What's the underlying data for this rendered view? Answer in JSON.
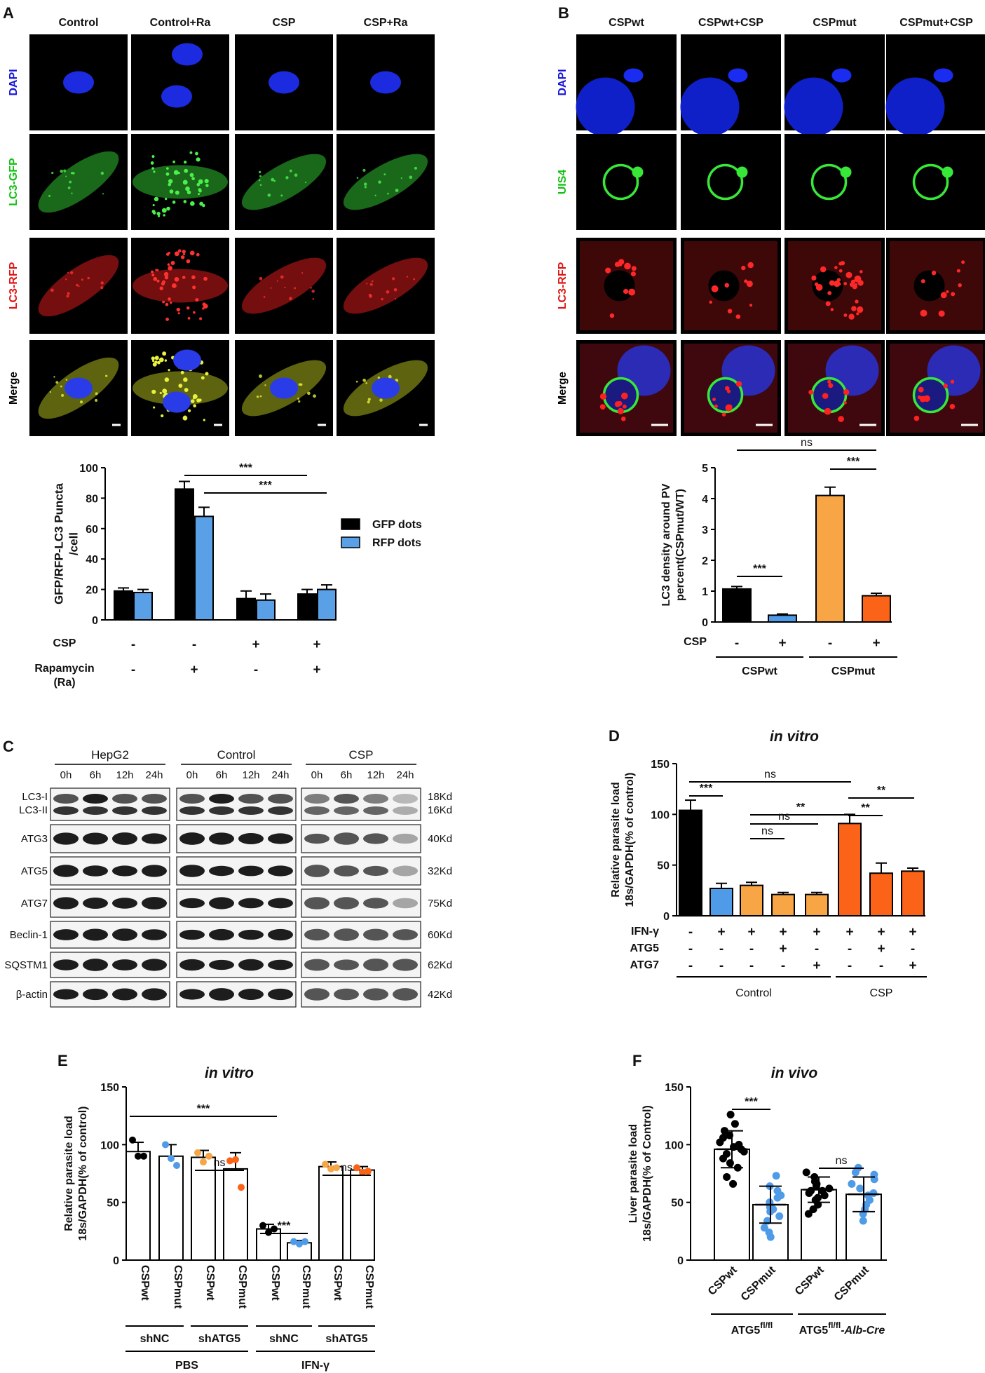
{
  "panels": {
    "A": {
      "letter": "A",
      "columns": [
        "Control",
        "Control+Ra",
        "CSP",
        "CSP+Ra"
      ],
      "rows": [
        {
          "label": "DAPI",
          "color": "#1515d8"
        },
        {
          "label": "LC3-GFP",
          "color": "#12c012"
        },
        {
          "label": "LC3-RFP",
          "color": "#e01515"
        },
        {
          "label": "Merge",
          "color": "#000000"
        }
      ]
    },
    "B": {
      "letter": "B",
      "columns": [
        "CSPwt",
        "CSPwt+CSP",
        "CSPmut",
        "CSPmut+CSP"
      ],
      "rows": [
        {
          "label": "DAPI",
          "color": "#1515d8"
        },
        {
          "label": "UIS4",
          "color": "#12c012"
        },
        {
          "label": "LC3-RFP",
          "color": "#e01515"
        },
        {
          "label": "Merge",
          "color": "#000000"
        }
      ]
    },
    "C": {
      "letter": "C",
      "groups": [
        "HepG2",
        "Control",
        "CSP"
      ],
      "timepoints": [
        "0h",
        "6h",
        "12h",
        "24h"
      ],
      "bands": [
        {
          "name": "LC3-I",
          "name2": "LC3-II",
          "size": "18Kd",
          "size2": "16Kd"
        },
        {
          "name": "ATG3",
          "size": "40Kd"
        },
        {
          "name": "ATG5",
          "size": "32Kd"
        },
        {
          "name": "ATG7",
          "size": "75Kd"
        },
        {
          "name": "Beclin-1",
          "size": "60Kd"
        },
        {
          "name": "SQSTM1",
          "size": "62Kd"
        },
        {
          "name": "β-actin",
          "size": "42Kd"
        }
      ]
    },
    "D": {
      "letter": "D"
    },
    "E": {
      "letter": "E"
    },
    "F": {
      "letter": "F"
    }
  },
  "chart_data": [
    {
      "panel": "A",
      "type": "bar",
      "ylabel": "GFP/RFP-LC3 Puncta\n/cell",
      "ylim": [
        0,
        100
      ],
      "yticks": [
        0,
        20,
        40,
        60,
        80,
        100
      ],
      "series": [
        {
          "name": "GFP dots",
          "color": "#000000",
          "values": [
            19,
            86,
            14,
            17
          ],
          "errors": [
            2,
            5,
            5,
            3
          ]
        },
        {
          "name": "RFP dots",
          "color": "#5aa0e6",
          "values": [
            18,
            68,
            13,
            20
          ],
          "errors": [
            2,
            6,
            4,
            3
          ]
        }
      ],
      "legend": "right",
      "factor_rows": [
        {
          "label": "CSP",
          "values": [
            "-",
            "-",
            "+",
            "+"
          ]
        },
        {
          "label": "Rapamycin\n(Ra)",
          "values": [
            "-",
            "+",
            "-",
            "+"
          ]
        }
      ],
      "significance": [
        {
          "from": [
            1,
            0
          ],
          "to": [
            3,
            0
          ],
          "label": "***"
        },
        {
          "from": [
            1,
            1
          ],
          "to": [
            3,
            1
          ],
          "label": "***"
        }
      ]
    },
    {
      "panel": "B",
      "type": "bar",
      "ylabel": "LC3 density around PV\npercent(CSPmut/WT)",
      "ylim": [
        0,
        5
      ],
      "yticks": [
        0,
        1,
        2,
        3,
        4,
        5
      ],
      "values": [
        1.07,
        0.22,
        4.1,
        0.85
      ],
      "errors": [
        0.08,
        0.04,
        0.27,
        0.08
      ],
      "colors": [
        "#000000",
        "#4f9be8",
        "#f7a545",
        "#fb6418"
      ],
      "factor_rows": [
        {
          "label": "CSP",
          "values": [
            "-",
            "+",
            "-",
            "+"
          ]
        }
      ],
      "groups": [
        {
          "label": "CSPwt",
          "bars": [
            0,
            1
          ]
        },
        {
          "label": "CSPmut",
          "bars": [
            2,
            3
          ]
        }
      ],
      "significance": [
        {
          "bars": [
            0,
            1
          ],
          "label": "***"
        },
        {
          "bars": [
            2,
            3
          ],
          "label": "***"
        },
        {
          "bars": [
            0,
            3
          ],
          "label": "ns"
        }
      ]
    },
    {
      "panel": "D",
      "type": "bar",
      "title": "in vitro",
      "ylabel": "Relative parasite load\n18s/GAPDH(% of control)",
      "ylim": [
        0,
        150
      ],
      "yticks": [
        0,
        50,
        100,
        150
      ],
      "values": [
        104,
        27,
        30,
        21,
        21,
        91,
        42,
        44
      ],
      "errors": [
        10,
        5,
        3,
        2,
        2,
        9,
        10,
        3
      ],
      "colors": [
        "#000000",
        "#4f9be8",
        "#f7a545",
        "#f7a545",
        "#f7a545",
        "#fb6418",
        "#fb6418",
        "#fb6418"
      ],
      "factor_rows": [
        {
          "label": "IFN-γ",
          "values": [
            "-",
            "+",
            "+",
            "+",
            "+",
            "+",
            "+",
            "+"
          ]
        },
        {
          "label": "ATG5",
          "values": [
            "-",
            "-",
            "-",
            "+",
            "-",
            "-",
            "+",
            "-"
          ]
        },
        {
          "label": "ATG7",
          "values": [
            "-",
            "-",
            "-",
            "-",
            "+",
            "-",
            "-",
            "+"
          ]
        }
      ],
      "groups": [
        {
          "label": "Control",
          "bars": [
            0,
            4
          ]
        },
        {
          "label": "CSP",
          "bars": [
            5,
            7
          ]
        }
      ],
      "significance": [
        {
          "bars": [
            0,
            1
          ],
          "label": "***"
        },
        {
          "bars": [
            0,
            5
          ],
          "label": "ns"
        },
        {
          "bars": [
            2,
            5
          ],
          "label": "**"
        },
        {
          "bars": [
            2,
            3
          ],
          "label": "ns"
        },
        {
          "bars": [
            2,
            4
          ],
          "label": "ns"
        },
        {
          "bars": [
            5,
            6
          ],
          "label": "**"
        },
        {
          "bars": [
            5,
            7
          ],
          "label": "**"
        }
      ]
    },
    {
      "panel": "E",
      "type": "bar",
      "title": "in vitro",
      "ylabel": "Relative parasite load\n18s/GAPDH(% of control)",
      "ylim": [
        0,
        150
      ],
      "yticks": [
        0,
        50,
        100,
        150
      ],
      "categories": [
        "CSPwt",
        "CSPmut",
        "CSPwt",
        "CSPmut",
        "CSPwt",
        "CSPmut",
        "CSPwt",
        "CSPmut"
      ],
      "values": [
        94,
        90,
        89,
        79,
        27,
        15,
        81,
        78
      ],
      "errors": [
        8,
        10,
        6,
        14,
        4,
        2,
        4,
        3
      ],
      "points": [
        [
          104,
          90,
          90
        ],
        [
          100,
          88,
          82
        ],
        [
          93,
          85,
          90
        ],
        [
          86,
          87,
          63
        ],
        [
          30,
          24,
          27
        ],
        [
          16,
          14,
          16
        ],
        [
          83,
          79,
          80
        ],
        [
          80,
          76,
          77
        ]
      ],
      "point_colors": [
        "#000000",
        "#4f9be8",
        "#f7a545",
        "#fb6418",
        "#000000",
        "#4f9be8",
        "#f7a545",
        "#fb6418"
      ],
      "sub_groups": [
        {
          "label": "shNC",
          "bars": [
            0,
            1
          ]
        },
        {
          "label": "shATG5",
          "bars": [
            2,
            3
          ]
        },
        {
          "label": "shNC",
          "bars": [
            4,
            5
          ]
        },
        {
          "label": "shATG5",
          "bars": [
            6,
            7
          ]
        }
      ],
      "groups": [
        {
          "label": "PBS",
          "bars": [
            0,
            3
          ]
        },
        {
          "label": "IFN-γ",
          "bars": [
            4,
            7
          ]
        }
      ],
      "significance": [
        {
          "bars": [
            0,
            4
          ],
          "label": "***"
        },
        {
          "bars": [
            2,
            3
          ],
          "label": "ns"
        },
        {
          "bars": [
            4,
            5
          ],
          "label": "***"
        },
        {
          "bars": [
            6,
            7
          ],
          "label": "ns"
        }
      ]
    },
    {
      "panel": "F",
      "type": "scatter",
      "title": "in vivo",
      "ylabel": "Liver parasite load\n18s/GAPDH(% of Control)",
      "ylim": [
        0,
        150
      ],
      "yticks": [
        0,
        50,
        100,
        150
      ],
      "categories": [
        "CSPwt",
        "CSPmut",
        "CSPwt",
        "CSPmut"
      ],
      "values": [
        96,
        48,
        61,
        57
      ],
      "errors": [
        16,
        16,
        11,
        15
      ],
      "points": [
        [
          126,
          118,
          112,
          108,
          106,
          102,
          100,
          98,
          96,
          94,
          92,
          88,
          84,
          80,
          72,
          66
        ],
        [
          73,
          64,
          60,
          56,
          54,
          50,
          46,
          44,
          42,
          38,
          34,
          28,
          24,
          20
        ],
        [
          76,
          72,
          68,
          66,
          64,
          62,
          60,
          60,
          58,
          56,
          54,
          52,
          48,
          44,
          40
        ],
        [
          80,
          76,
          74,
          70,
          66,
          62,
          58,
          56,
          52,
          48,
          44,
          40,
          34
        ]
      ],
      "point_colors": [
        "#000000",
        "#4f9be8",
        "#000000",
        "#4f9be8"
      ],
      "groups": [
        {
          "label": "ATG5",
          "sup": "fl/fl",
          "suffix": "",
          "bars": [
            0,
            1
          ]
        },
        {
          "label": "ATG5",
          "sup": "fl/fl",
          "suffix": "-Alb-Cre",
          "bars": [
            2,
            3
          ]
        }
      ],
      "significance": [
        {
          "bars": [
            0,
            1
          ],
          "label": "***"
        },
        {
          "bars": [
            2,
            3
          ],
          "label": "ns"
        }
      ]
    }
  ]
}
